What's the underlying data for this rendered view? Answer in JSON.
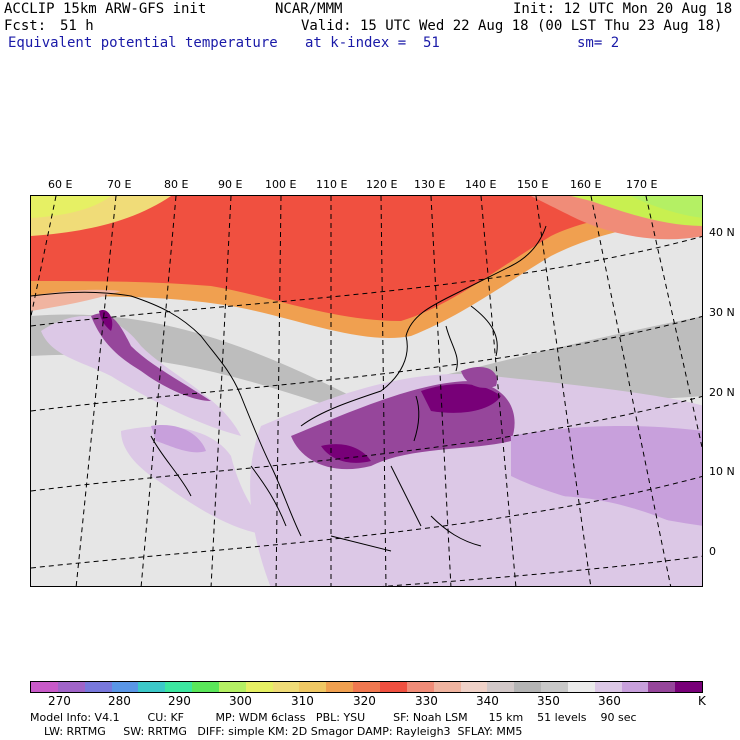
{
  "header": {
    "model": "ACCLIP 15km ARW-GFS init",
    "org": "NCAR/MMM",
    "init": "Init: 12 UTC Mon 20 Aug 18",
    "fcst_label": "Fcst:",
    "fcst_value": "51 h",
    "valid": "Valid: 15 UTC Wed 22 Aug 18 (00 LST Thu 23 Aug 18)",
    "field": "Equivalent potential temperature",
    "level": "at k-index =  51",
    "smooth": "sm= 2"
  },
  "map": {
    "lon_labels": [
      "60 E",
      "70 E",
      "80 E",
      "90 E",
      "100 E",
      "110 E",
      "120 E",
      "130 E",
      "140 E",
      "150 E",
      "160 E",
      "170 E"
    ],
    "lat_labels": [
      "40 N",
      "30 N",
      "20 N",
      "10 N",
      "0"
    ]
  },
  "colorbar": {
    "colors": [
      "#c85ac8",
      "#a064c8",
      "#7878dc",
      "#5a96e6",
      "#3cc8c8",
      "#3ce6a0",
      "#5ae65a",
      "#b4f064",
      "#e6f064",
      "#f0dc78",
      "#f0c864",
      "#f0a050",
      "#f07850",
      "#f05040",
      "#f08c78",
      "#f0b4a0",
      "#f0d2c8",
      "#d2c8c8",
      "#b4b4b4",
      "#c8c8c8",
      "#ebebeb",
      "#dcc8e6",
      "#c8a0dc",
      "#96469b",
      "#780078"
    ],
    "labels": [
      "270",
      "280",
      "290",
      "300",
      "310",
      "320",
      "330",
      "340",
      "350",
      "360"
    ],
    "unit": "K"
  },
  "model_info": {
    "line1": "Model Info: V4.1        CU: KF         MP: WDM 6class   PBL: YSU        SF: Noah LSM      15 km    51 levels    90 sec",
    "line2": "    LW: RRTMG     SW: RRTMG   DIFF: simple KM: 2D Smagor DAMP: Rayleigh3  SFLAY: MM5"
  }
}
